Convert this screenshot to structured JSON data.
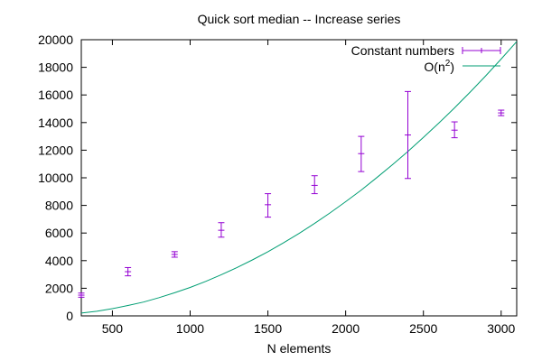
{
  "chart_data": {
    "type": "scatter",
    "title": "Quick sort median -- Increase series",
    "xlabel": "N elements",
    "ylabel": "",
    "xlim": [
      300,
      3100
    ],
    "ylim": [
      0,
      20000
    ],
    "xticks": [
      500,
      1000,
      1500,
      2000,
      2500,
      3000
    ],
    "yticks": [
      0,
      2000,
      4000,
      6000,
      8000,
      10000,
      12000,
      14000,
      16000,
      18000,
      20000
    ],
    "grid": false,
    "legend_position": "top-right",
    "colors": {
      "points": "#9400d3",
      "curve": "#009e73"
    },
    "series": [
      {
        "name": "Constant numbers",
        "kind": "errorbar",
        "points": [
          {
            "x": 300,
            "y": 1500,
            "low": 1350,
            "high": 1650
          },
          {
            "x": 600,
            "y": 3200,
            "low": 2900,
            "high": 3500
          },
          {
            "x": 900,
            "y": 4450,
            "low": 4250,
            "high": 4650
          },
          {
            "x": 1200,
            "y": 6200,
            "low": 5700,
            "high": 6750
          },
          {
            "x": 1500,
            "y": 8050,
            "low": 7150,
            "high": 8850
          },
          {
            "x": 1800,
            "y": 9450,
            "low": 8850,
            "high": 10150
          },
          {
            "x": 2100,
            "y": 11750,
            "low": 10450,
            "high": 13000
          },
          {
            "x": 2400,
            "y": 13100,
            "low": 9950,
            "high": 16250
          },
          {
            "x": 2700,
            "y": 13450,
            "low": 12900,
            "high": 14050
          },
          {
            "x": 3000,
            "y": 14700,
            "low": 14500,
            "high": 14900
          }
        ]
      },
      {
        "name": "O(n",
        "name_sup": "2",
        "name_suffix": ")",
        "kind": "line",
        "x": [
          300,
          400,
          500,
          600,
          700,
          800,
          900,
          1000,
          1100,
          1200,
          1300,
          1400,
          1500,
          1600,
          1700,
          1800,
          1900,
          2000,
          2100,
          2200,
          2300,
          2400,
          2500,
          2600,
          2700,
          2800,
          2900,
          3000,
          3100
        ],
        "y": [
          200,
          335,
          520,
          750,
          1000,
          1320,
          1670,
          2060,
          2500,
          2980,
          3490,
          4050,
          4650,
          5290,
          5970,
          6690,
          7460,
          8270,
          9110,
          10010,
          10940,
          11900,
          12920,
          13970,
          15060,
          16200,
          17380,
          18600,
          19860
        ]
      }
    ]
  }
}
